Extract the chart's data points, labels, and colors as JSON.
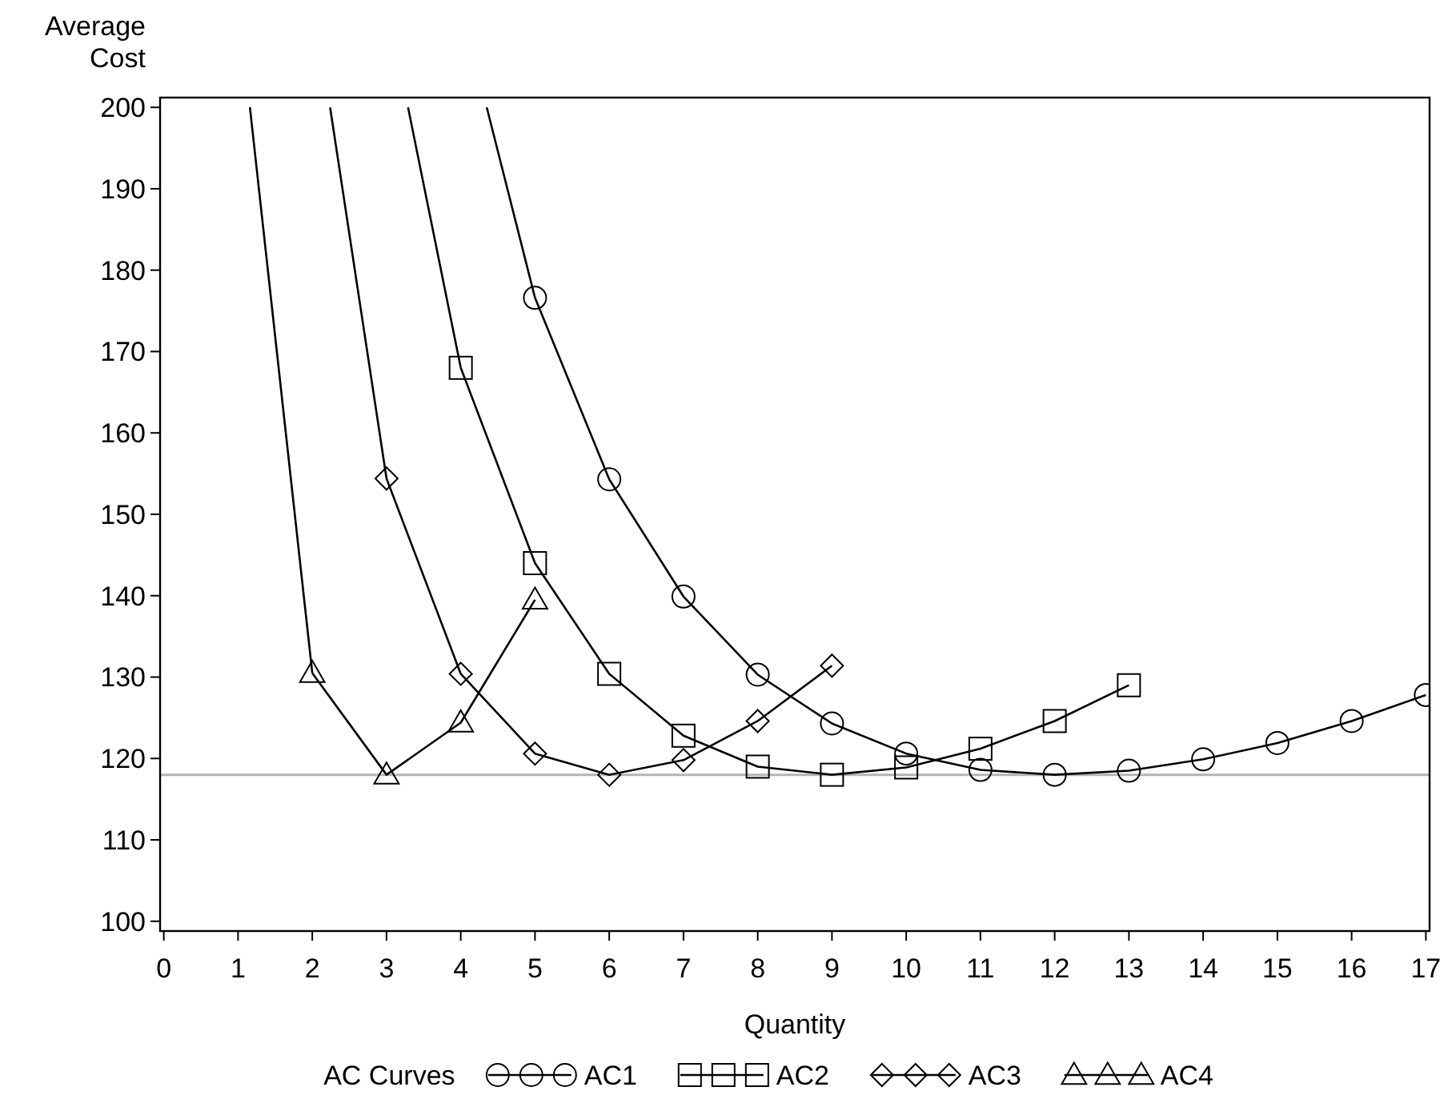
{
  "chart_data": {
    "type": "line",
    "xlabel": "Quantity",
    "ylabel": "Average Cost",
    "legend_title": "AC Curves",
    "legend": "bottom",
    "xlim": [
      -0.05,
      17.05
    ],
    "ylim": [
      98.8,
      201.2
    ],
    "xticks": [
      0,
      1,
      2,
      3,
      4,
      5,
      6,
      7,
      8,
      9,
      10,
      11,
      12,
      13,
      14,
      15,
      16,
      17
    ],
    "yticks": [
      100,
      110,
      120,
      130,
      140,
      150,
      160,
      170,
      180,
      190,
      200
    ],
    "grid": false,
    "series": [
      {
        "name": "AC1",
        "color": "#000000",
        "marker": "circle",
        "x": [
          5,
          6,
          7,
          8,
          9,
          10,
          11,
          12,
          13,
          14,
          15,
          16,
          17
        ],
        "values": [
          176.6,
          154.3,
          139.9,
          130.3,
          124.3,
          120.6,
          118.6,
          118,
          118.5,
          119.9,
          121.9,
          124.6,
          127.8
        ]
      },
      {
        "name": "AC2",
        "color": "#000000",
        "marker": "square",
        "x": [
          4,
          5,
          6,
          7,
          8,
          9,
          10,
          11,
          12,
          13
        ],
        "values": [
          168,
          144,
          130.4,
          122.8,
          119,
          118,
          118.9,
          121.2,
          124.6,
          129
        ]
      },
      {
        "name": "AC3",
        "color": "#000000",
        "marker": "diamond",
        "x": [
          3,
          4,
          5,
          6,
          7,
          8,
          9
        ],
        "values": [
          154.4,
          130.4,
          120.6,
          118,
          119.8,
          124.6,
          131.4
        ]
      },
      {
        "name": "AC4",
        "color": "#000000",
        "marker": "triangle",
        "x": [
          2,
          3,
          4,
          5
        ],
        "values": [
          130.5,
          118,
          124.4,
          139.5
        ]
      },
      {
        "color": "#000000",
        "marker": "none",
        "x": [
          4.35,
          5
        ],
        "values": [
          200,
          176.6
        ]
      },
      {
        "color": "#000000",
        "marker": "none",
        "x": [
          3.29,
          4
        ],
        "values": [
          200,
          168
        ]
      },
      {
        "color": "#000000",
        "marker": "none",
        "x": [
          2.24,
          3
        ],
        "values": [
          200,
          154.4
        ]
      },
      {
        "color": "#000000",
        "marker": "none",
        "x": [
          1.16,
          2
        ],
        "values": [
          200,
          130.5
        ]
      }
    ],
    "ref_lines": [
      {
        "axis": "y",
        "value": 118,
        "color": "#b4b4b4"
      }
    ]
  }
}
